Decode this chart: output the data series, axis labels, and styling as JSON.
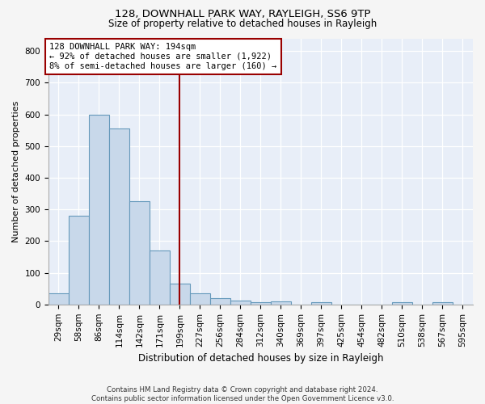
{
  "title_line1": "128, DOWNHALL PARK WAY, RAYLEIGH, SS6 9TP",
  "title_line2": "Size of property relative to detached houses in Rayleigh",
  "xlabel": "Distribution of detached houses by size in Rayleigh",
  "ylabel": "Number of detached properties",
  "footnote": "Contains HM Land Registry data © Crown copyright and database right 2024.\nContains public sector information licensed under the Open Government Licence v3.0.",
  "bar_labels": [
    "29sqm",
    "58sqm",
    "86sqm",
    "114sqm",
    "142sqm",
    "171sqm",
    "199sqm",
    "227sqm",
    "256sqm",
    "284sqm",
    "312sqm",
    "340sqm",
    "369sqm",
    "397sqm",
    "425sqm",
    "454sqm",
    "482sqm",
    "510sqm",
    "538sqm",
    "567sqm",
    "595sqm"
  ],
  "bar_values": [
    35,
    280,
    600,
    555,
    327,
    170,
    65,
    35,
    20,
    12,
    8,
    10,
    0,
    8,
    0,
    0,
    0,
    8,
    0,
    8,
    0
  ],
  "bar_color": "#c8d8ea",
  "bar_edge_color": "#6699bb",
  "background_color": "#e8eef8",
  "grid_color": "#ffffff",
  "vline_x_index": 6,
  "vline_color": "#990000",
  "annotation_text": "128 DOWNHALL PARK WAY: 194sqm\n← 92% of detached houses are smaller (1,922)\n8% of semi-detached houses are larger (160) →",
  "annotation_box_color": "#990000",
  "ylim": [
    0,
    840
  ],
  "yticks": [
    0,
    100,
    200,
    300,
    400,
    500,
    600,
    700,
    800
  ],
  "title1_fontsize": 9.5,
  "title2_fontsize": 8.5,
  "annotation_fontsize": 7.5,
  "ylabel_fontsize": 8,
  "xlabel_fontsize": 8.5,
  "tick_fontsize": 7.5
}
